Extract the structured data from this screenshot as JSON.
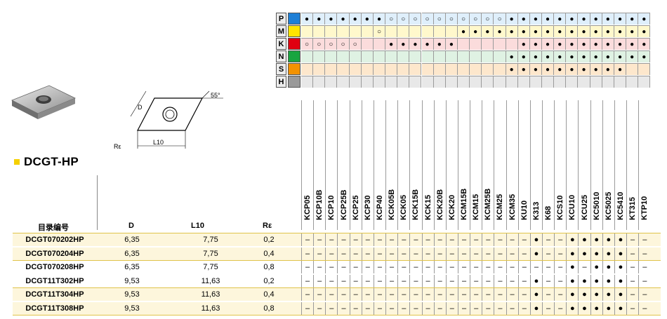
{
  "title": "DCGT-HP",
  "drawing": {
    "label_d": "D",
    "label_l": "L10",
    "label_r": "Rε",
    "label_angle": "55°"
  },
  "materials": [
    {
      "letter": "P",
      "color": "#1e7fd6",
      "row": "●●●●●●●○○○○○○○○○○●●●●●●●●●●●●●●",
      "bg": "#dfeffb"
    },
    {
      "letter": "M",
      "color": "#ffe500",
      "row": "      ○      ●●●●●●●●●●●●●●●●●●●",
      "bg": "#fff8cc"
    },
    {
      "letter": "K",
      "color": "#e00010",
      "row": "○○○○○  ●●●●●●     ●●●●●●●●●●●●",
      "bg": "#fbdcdc"
    },
    {
      "letter": "N",
      "color": "#18a540",
      "row": "                 ●●●●●●●●●●●●",
      "bg": "#dff2e3"
    },
    {
      "letter": "S",
      "color": "#f39200",
      "row": "                 ●●●●●●●●●●",
      "bg": "#fde7cc"
    },
    {
      "letter": "H",
      "color": "#9a9a9a",
      "row": "",
      "bg": "#e8e8e8"
    }
  ],
  "grades": [
    "KCP05",
    "KCP10B",
    "KCP10",
    "KCP25B",
    "KCP25",
    "KCP30",
    "KCP40",
    "KCK05B",
    "KCK05",
    "KCK15B",
    "KCK15",
    "KCK20B",
    "KCK20",
    "KCM15B",
    "KCM15",
    "KCM25B",
    "KCM25",
    "KCM35",
    "KU10",
    "K313",
    "K68",
    "KCS10",
    "KCU10",
    "KCU25",
    "KC5010",
    "KC5025",
    "KC5410",
    "KT315",
    "KTP10"
  ],
  "columns": {
    "code": "目录编号",
    "d": "D",
    "l10": "L10",
    "re": "Rε"
  },
  "rows": [
    {
      "code": "DCGT070202HP",
      "d": "6,35",
      "l10": "7,75",
      "re": "0,2",
      "marks": "-------------------●--●●●●●--",
      "hl": true
    },
    {
      "code": "DCGT070204HP",
      "d": "6,35",
      "l10": "7,75",
      "re": "0,4",
      "marks": "-------------------●--●●●●●--",
      "hl": true
    },
    {
      "code": "DCGT070208HP",
      "d": "6,35",
      "l10": "7,75",
      "re": "0,8",
      "marks": "----------------------●-●●●--",
      "hl": false
    },
    {
      "code": "DCGT11T302HP",
      "d": "9,53",
      "l10": "11,63",
      "re": "0,2",
      "marks": "-------------------●--●●●●●--",
      "hl": false
    },
    {
      "code": "DCGT11T304HP",
      "d": "9,53",
      "l10": "11,63",
      "re": "0,4",
      "marks": "-------------------●--●●●●●--",
      "hl": true
    },
    {
      "code": "DCGT11T308HP",
      "d": "9,53",
      "l10": "11,63",
      "re": "0,8",
      "marks": "-------------------●--●●●●●--",
      "hl": true
    }
  ]
}
